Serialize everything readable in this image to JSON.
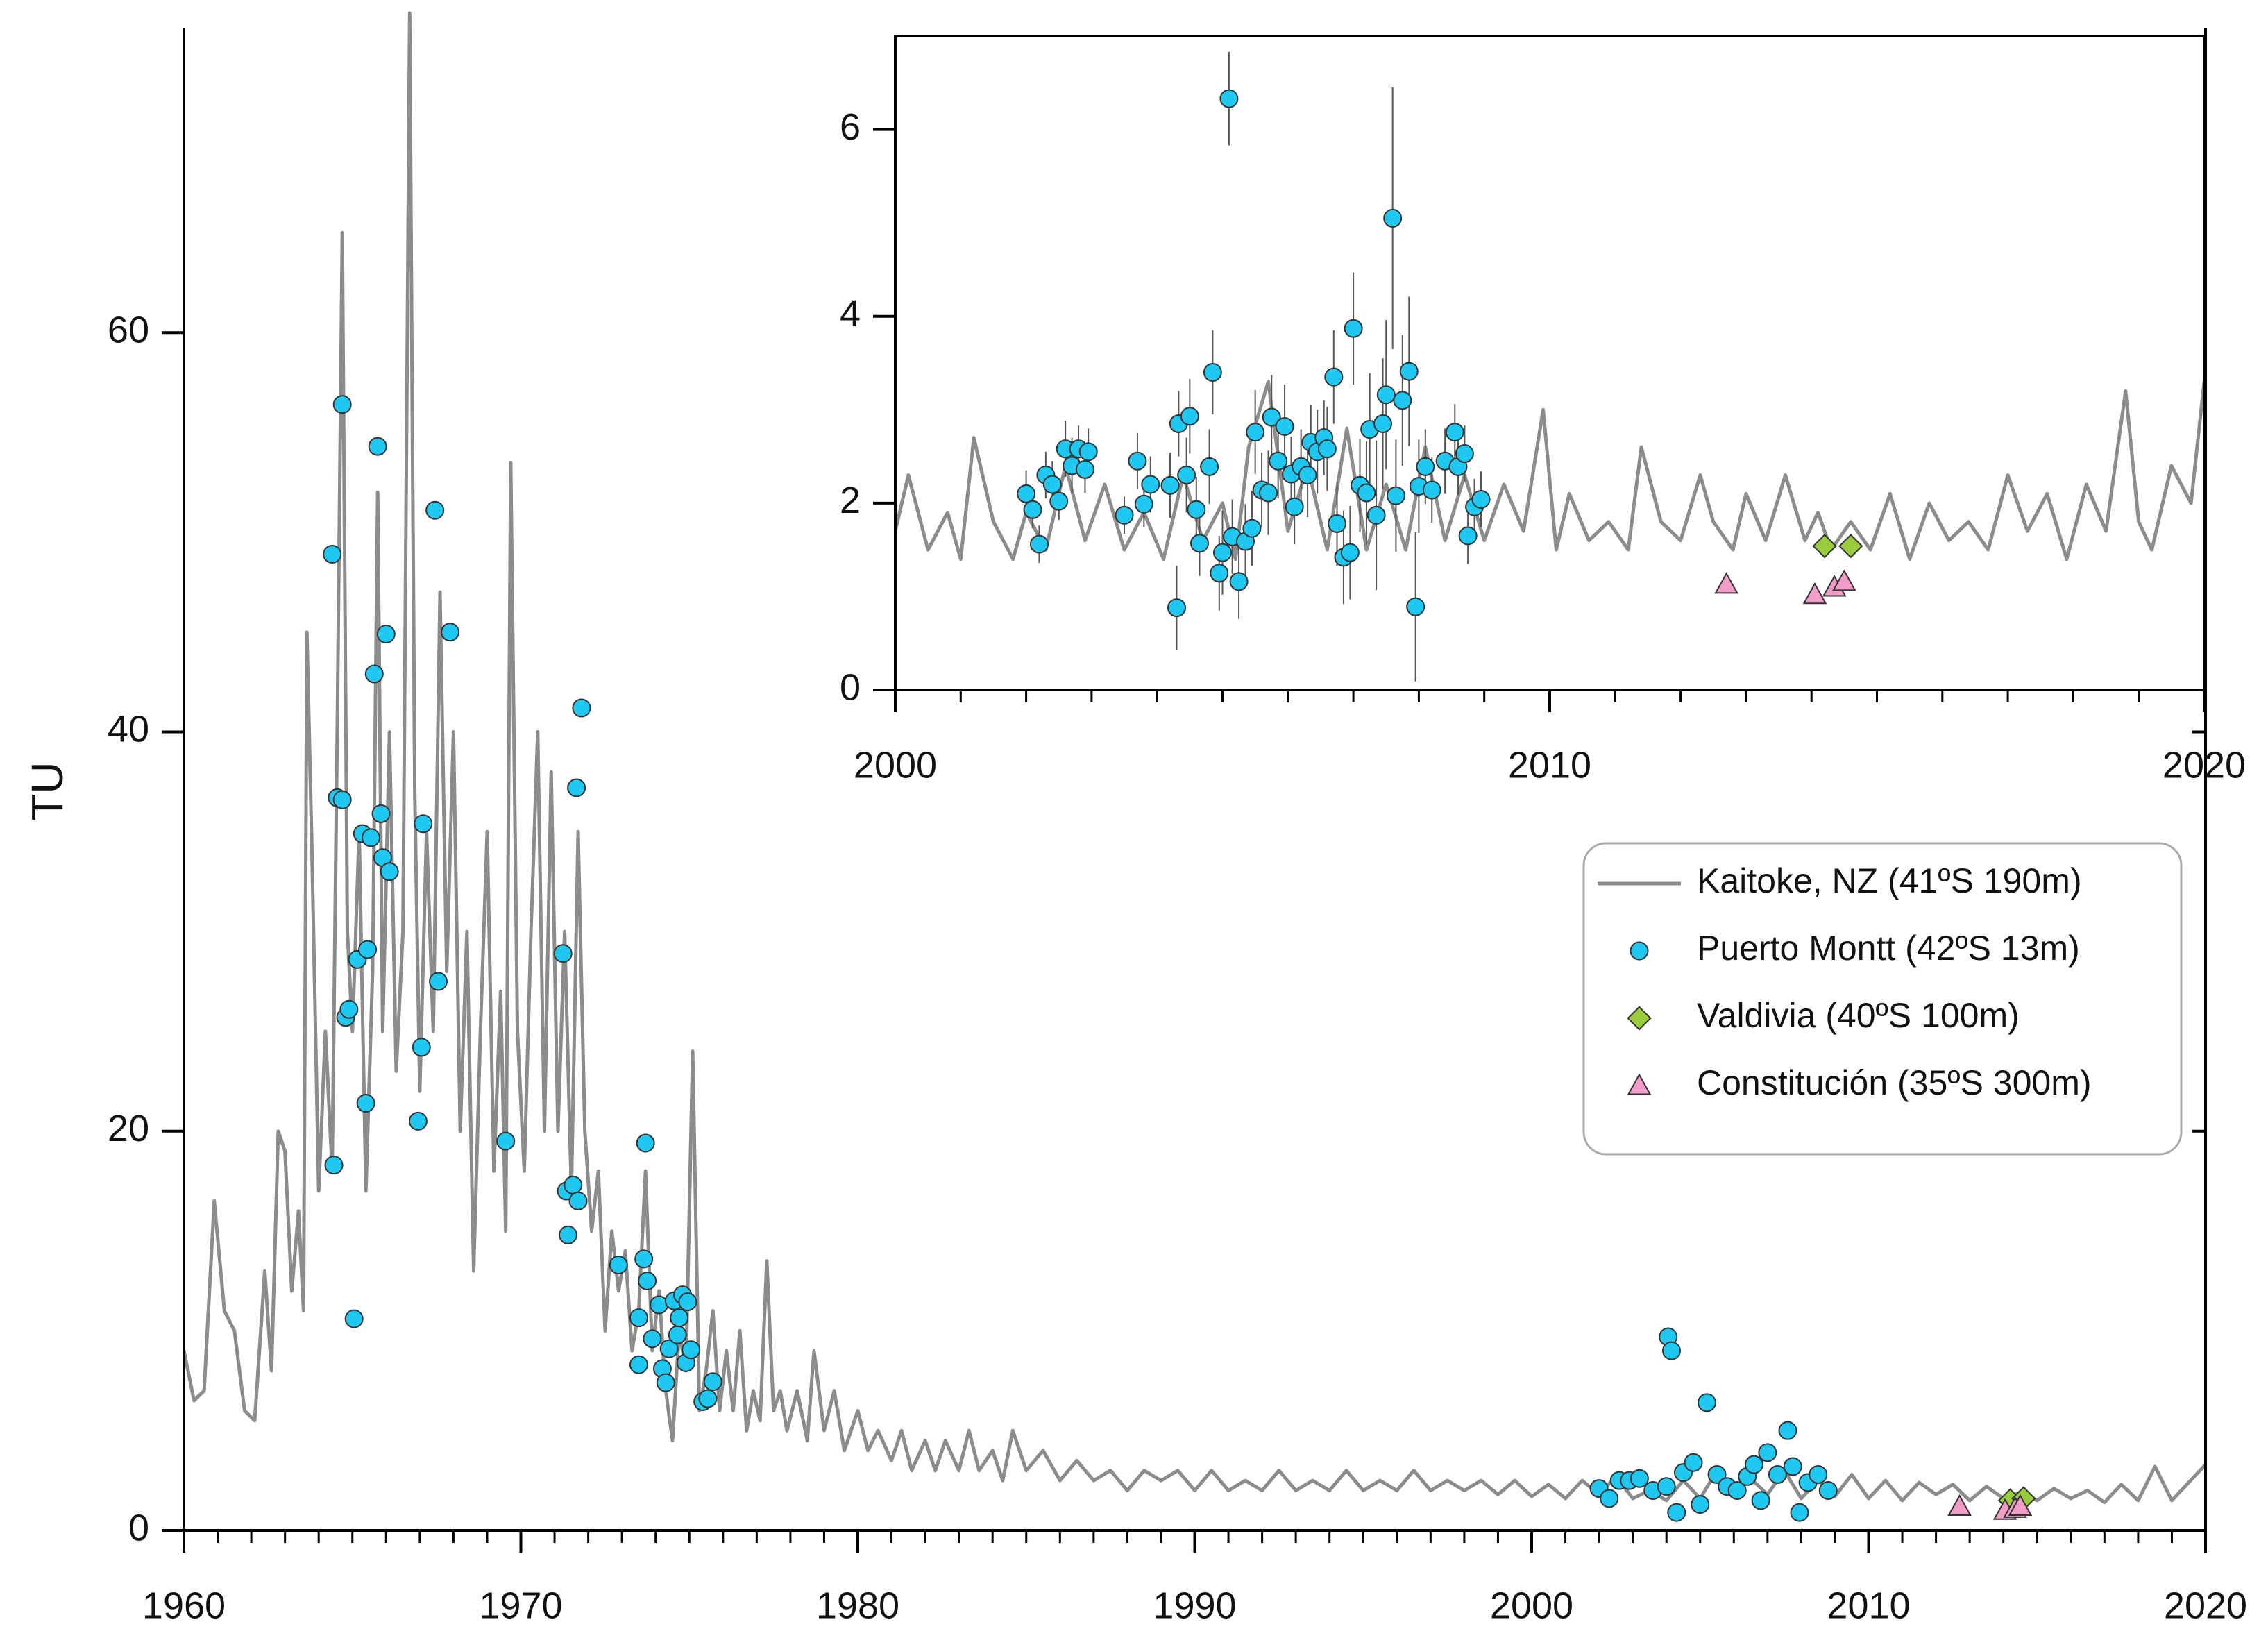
{
  "chart_data": [
    {
      "type": "line",
      "ylabel": "TU",
      "xlim": [
        1960,
        2020
      ],
      "xticks": [
        1960,
        1970,
        1980,
        1990,
        2000,
        2010,
        2020
      ],
      "xminor": 1,
      "ylim": [
        0,
        75.2
      ],
      "yticks": [
        0,
        20,
        40,
        60
      ],
      "legend": "right",
      "series": [
        {
          "name": "Kaitoke, NZ (41ºS 190m)",
          "color": "#8c8c8c",
          "marker": "line",
          "x": [
            1960.0,
            1960.3,
            1960.6,
            1960.9,
            1961.2,
            1961.5,
            1961.8,
            1962.1,
            1962.4,
            1962.6,
            1962.8,
            1963.0,
            1963.2,
            1963.4,
            1963.55,
            1963.65,
            1963.8,
            1964.0,
            1964.2,
            1964.4,
            1964.55,
            1964.7,
            1964.85,
            1965.0,
            1965.2,
            1965.4,
            1965.6,
            1965.75,
            1965.9,
            1966.1,
            1966.3,
            1966.5,
            1966.7,
            1966.85,
            1967.0,
            1967.2,
            1967.4,
            1967.6,
            1967.8,
            1968.0,
            1968.2,
            1968.4,
            1968.6,
            1968.8,
            1969.0,
            1969.2,
            1969.4,
            1969.55,
            1969.7,
            1969.9,
            1970.1,
            1970.3,
            1970.5,
            1970.7,
            1970.9,
            1971.1,
            1971.3,
            1971.5,
            1971.7,
            1971.9,
            1972.1,
            1972.3,
            1972.5,
            1972.7,
            1972.9,
            1973.1,
            1973.3,
            1973.5,
            1973.7,
            1973.9,
            1974.1,
            1974.3,
            1974.5,
            1974.7,
            1974.9,
            1975.1,
            1975.3,
            1975.5,
            1975.7,
            1975.9,
            1976.1,
            1976.3,
            1976.5,
            1976.7,
            1976.9,
            1977.1,
            1977.3,
            1977.5,
            1977.7,
            1977.9,
            1978.2,
            1978.5,
            1978.7,
            1979,
            1979.3,
            1979.6,
            1980,
            1980.3,
            1980.6,
            1981,
            1981.3,
            1981.6,
            1982,
            1982.3,
            1982.6,
            1983,
            1983.3,
            1983.6,
            1984,
            1984.3,
            1984.6,
            1985,
            1985.5,
            1986,
            1986.5,
            1987,
            1987.5,
            1988,
            1988.5,
            1989,
            1989.5,
            1990,
            1990.5,
            1991,
            1991.5,
            1992,
            1992.5,
            1993,
            1993.5,
            1994,
            1994.5,
            1995,
            1995.5,
            1996,
            1996.5,
            1997,
            1997.5,
            1998,
            1998.5,
            1999,
            1999.5,
            2000,
            2000.5,
            2001,
            2001.5,
            2002,
            2002.5,
            2003,
            2003.5,
            2004,
            2004.5,
            2005,
            2005.5,
            2006,
            2006.5,
            2007,
            2007.5,
            2008,
            2008.5,
            2009,
            2009.5,
            2010,
            2010.5,
            2011,
            2011.5,
            2012,
            2012.5,
            2013,
            2013.5,
            2014,
            2014.5,
            2015,
            2015.5,
            2016,
            2016.5,
            2017,
            2017.5,
            2018,
            2018.5,
            2019,
            2019.5,
            2020
          ],
          "values": [
            9,
            6.5,
            7,
            16.5,
            11,
            10,
            6,
            5.5,
            13,
            8,
            20,
            19,
            12,
            16,
            11,
            45,
            34,
            17,
            25,
            18,
            40,
            65,
            30,
            25,
            35,
            17,
            28,
            52,
            25,
            40,
            23,
            30,
            76,
            37,
            22,
            35,
            25,
            47,
            28,
            40,
            20,
            30,
            13,
            25,
            35,
            18,
            27,
            15,
            53.5,
            25,
            18,
            30,
            40,
            20,
            38,
            20,
            30,
            17,
            35,
            20,
            15,
            18,
            10,
            15,
            12,
            14,
            9,
            11,
            18,
            9,
            12,
            7,
            4.5,
            10,
            8,
            24,
            6,
            8,
            11,
            6,
            9,
            6,
            10,
            5,
            7,
            5.5,
            13.5,
            6,
            7,
            5,
            7,
            4.5,
            9,
            5,
            7,
            4,
            6,
            4,
            5,
            3.5,
            5,
            3,
            4.5,
            3,
            4.5,
            3,
            5,
            3,
            4,
            2.5,
            5,
            3,
            4,
            2.5,
            3.5,
            2.5,
            3,
            2,
            3,
            2.5,
            3,
            2,
            3,
            2,
            2.5,
            2,
            3,
            2,
            2.5,
            2,
            3,
            2,
            2.5,
            2,
            3,
            2,
            2.5,
            2,
            2.5,
            1.8,
            2.5,
            1.7,
            2.3,
            1.6,
            2.5,
            1.8,
            2.7,
            1.6,
            2,
            1.5,
            2.5,
            1.6,
            3,
            1.7,
            2.6,
            1.8,
            3,
            1.6,
            2.5,
            1.7,
            2.8,
            1.6,
            2.5,
            1.5,
            2.4,
            1.8,
            2.3,
            1.5,
            2.2,
            1.6,
            1.9,
            1.5,
            2.1,
            1.6,
            2,
            1.4,
            2.3,
            1.5,
            3.2,
            1.5,
            2.4,
            3.3
          ]
        },
        {
          "name": "Puerto Montt (42ºS 13m)",
          "color": "#1ec8f0",
          "marker": "circle",
          "x": [
            1964.4,
            1964.45,
            1964.55,
            1964.7,
            1964.7,
            1964.8,
            1964.9,
            1965.05,
            1965.15,
            1965.3,
            1965.4,
            1965.45,
            1965.55,
            1965.65,
            1965.75,
            1965.85,
            1965.9,
            1966.0,
            1966.1,
            1966.95,
            1967.05,
            1967.1,
            1967.45,
            1967.55,
            1967.9,
            1969.55,
            1971.25,
            1971.35,
            1971.4,
            1971.55,
            1971.65,
            1971.7,
            1971.8,
            1972.9,
            1973.5,
            1973.5,
            1973.65,
            1973.7,
            1973.75,
            1973.9,
            1974.1,
            1974.2,
            1974.3,
            1974.4,
            1974.55,
            1974.65,
            1974.7,
            1974.8,
            1974.9,
            1974.95,
            1975.05,
            1975.4,
            1975.55,
            1975.7,
            2002.0,
            2002.3,
            2002.6,
            2002.9,
            2003.2,
            2003.6,
            2004.0,
            2004.05,
            2004.15,
            2004.3,
            2004.5,
            2004.8,
            2005.0,
            2005.2,
            2005.5,
            2005.8,
            2006.1,
            2006.4,
            2006.6,
            2006.8,
            2007.0,
            2007.3,
            2007.6,
            2007.75,
            2007.95,
            2008.2,
            2008.5,
            2008.8
          ],
          "values": [
            48.9,
            18.3,
            36.7,
            36.6,
            56.4,
            25.7,
            26.1,
            10.6,
            28.6,
            34.9,
            21.4,
            29.1,
            34.7,
            42.9,
            54.3,
            35.9,
            33.7,
            44.9,
            33.0,
            20.5,
            24.2,
            35.4,
            51.1,
            27.5,
            45.0,
            19.5,
            28.9,
            17.0,
            14.8,
            17.3,
            37.2,
            16.5,
            41.2,
            13.3,
            10.65,
            8.3,
            13.6,
            19.4,
            12.5,
            9.6,
            11.3,
            8.1,
            7.4,
            9.1,
            11.5,
            9.8,
            10.65,
            11.8,
            8.4,
            11.45,
            9.05,
            6.45,
            6.6,
            7.45,
            2.1,
            1.6,
            2.5,
            2.5,
            2.6,
            2.0,
            2.2,
            9.7,
            9.0,
            0.9,
            2.9,
            3.4,
            1.3,
            6.4,
            2.8,
            2.2,
            2.0,
            2.7,
            3.3,
            1.5,
            3.9,
            2.8,
            5.0,
            3.2,
            0.9,
            2.4,
            2.8,
            2.0
          ]
        },
        {
          "name": "Valdivia (40ºS 100m)",
          "color": "#9acd3c",
          "marker": "diamond",
          "x": [
            2014.2,
            2014.6
          ],
          "values": [
            1.5,
            1.6
          ]
        },
        {
          "name": "Constitución (35ºS 300m)",
          "color": "#f29cc8",
          "marker": "triangle",
          "x": [
            2012.7,
            2014.05,
            2014.35,
            2014.5
          ],
          "values": [
            1.2,
            1.0,
            1.1,
            1.2
          ]
        }
      ]
    },
    {
      "type": "line",
      "xlim": [
        2000,
        2020
      ],
      "xticks": [
        2000,
        2010,
        2020
      ],
      "xminor": 1,
      "ylim": [
        0,
        7
      ],
      "yticks": [
        0,
        2,
        4,
        6
      ],
      "series": [
        {
          "color": "#8c8c8c",
          "marker": "line",
          "x": [
            2000,
            2000.2,
            2000.5,
            2000.8,
            2001,
            2001.2,
            2001.5,
            2001.8,
            2002,
            2002.3,
            2002.6,
            2002.9,
            2003.2,
            2003.5,
            2003.8,
            2004.1,
            2004.4,
            2004.7,
            2005,
            2005.2,
            2005.4,
            2005.7,
            2006,
            2006.3,
            2006.6,
            2006.9,
            2007.2,
            2007.5,
            2007.8,
            2008.1,
            2008.4,
            2008.7,
            2009,
            2009.3,
            2009.6,
            2009.9,
            2010.1,
            2010.3,
            2010.6,
            2010.9,
            2011.2,
            2011.4,
            2011.7,
            2012,
            2012.3,
            2012.5,
            2012.8,
            2013,
            2013.3,
            2013.6,
            2013.9,
            2014.1,
            2014.3,
            2014.6,
            2014.9,
            2015.2,
            2015.5,
            2015.8,
            2016.1,
            2016.4,
            2016.7,
            2017,
            2017.3,
            2017.6,
            2017.9,
            2018.2,
            2018.5,
            2018.8,
            2019,
            2019.2,
            2019.5,
            2019.8,
            2020
          ],
          "values": [
            1.7,
            2.3,
            1.5,
            1.9,
            1.4,
            2.7,
            1.8,
            1.4,
            1.9,
            1.5,
            2.4,
            1.6,
            2.2,
            1.5,
            1.9,
            1.4,
            2.3,
            1.6,
            2.0,
            1.4,
            2.6,
            3.3,
            1.7,
            2.4,
            1.5,
            2.8,
            1.5,
            2.2,
            1.5,
            2.6,
            1.6,
            2.3,
            1.6,
            2.2,
            1.7,
            3.0,
            1.5,
            2.1,
            1.6,
            1.8,
            1.5,
            2.6,
            1.8,
            1.6,
            2.3,
            1.8,
            1.5,
            2.1,
            1.6,
            2.3,
            1.6,
            1.9,
            1.5,
            1.8,
            1.5,
            2.1,
            1.4,
            2.0,
            1.6,
            1.8,
            1.5,
            2.3,
            1.7,
            2.1,
            1.4,
            2.2,
            1.7,
            3.2,
            1.8,
            1.5,
            2.4,
            2.0,
            3.3
          ]
        },
        {
          "color": "#1ec8f0",
          "marker": "circle",
          "x": [
            2002.0,
            2002.1,
            2002.2,
            2002.3,
            2002.4,
            2002.5,
            2002.6,
            2002.7,
            2002.8,
            2002.9,
            2002.95,
            2003.5,
            2003.7,
            2003.8,
            2003.9,
            2004.2,
            2004.3,
            2004.33,
            2004.45,
            2004.5,
            2004.6,
            2004.65,
            2004.8,
            2004.85,
            2004.95,
            2005.0,
            2005.1,
            2005.15,
            2005.25,
            2005.35,
            2005.45,
            2005.5,
            2005.6,
            2005.7,
            2005.75,
            2005.85,
            2005.95,
            2006.05,
            2006.1,
            2006.2,
            2006.3,
            2006.35,
            2006.45,
            2006.55,
            2006.6,
            2006.7,
            2006.75,
            2006.85,
            2006.95,
            2007.0,
            2007.1,
            2007.2,
            2007.25,
            2007.35,
            2007.45,
            2007.5,
            2007.6,
            2007.65,
            2007.75,
            2007.85,
            2007.95,
            2008.0,
            2008.1,
            2008.2,
            2008.4,
            2008.55,
            2008.6,
            2008.7,
            2008.75,
            2008.85,
            2008.95
          ],
          "values": [
            2.1,
            1.93,
            1.56,
            2.3,
            2.2,
            2.02,
            2.58,
            2.4,
            2.58,
            2.36,
            2.55,
            1.87,
            2.45,
            1.99,
            2.2,
            2.19,
            0.88,
            2.85,
            2.3,
            2.93,
            1.93,
            1.57,
            2.39,
            3.4,
            1.25,
            1.47,
            6.33,
            1.64,
            1.16,
            1.59,
            1.73,
            2.76,
            2.14,
            2.11,
            2.92,
            2.45,
            2.82,
            2.31,
            1.96,
            2.39,
            2.3,
            2.65,
            2.55,
            2.7,
            2.58,
            3.35,
            1.78,
            1.42,
            1.47,
            3.87,
            2.19,
            2.11,
            2.79,
            1.87,
            2.85,
            3.16,
            5.05,
            2.08,
            3.1,
            3.41,
            0.89,
            2.18,
            2.39,
            2.14,
            2.45,
            2.76,
            2.39,
            2.53,
            1.65,
            1.96,
            2.04
          ],
          "errors": [
            0.25,
            0.2,
            0.2,
            0.25,
            0.25,
            0.2,
            0.3,
            0.3,
            0.25,
            0.25,
            0.25,
            0.2,
            0.3,
            0.25,
            0.3,
            0.35,
            0.45,
            0.35,
            0.4,
            0.4,
            0.35,
            0.35,
            0.4,
            0.45,
            0.4,
            0.45,
            0.5,
            0.4,
            0.4,
            0.4,
            0.4,
            0.45,
            0.4,
            0.45,
            0.45,
            0.4,
            0.45,
            0.4,
            0.4,
            0.4,
            0.45,
            0.4,
            0.45,
            0.4,
            0.45,
            0.5,
            0.45,
            0.5,
            0.5,
            0.6,
            0.5,
            0.55,
            0.6,
            0.8,
            0.7,
            0.8,
            1.4,
            0.6,
            0.7,
            0.8,
            0.8,
            0.5,
            0.4,
            0.35,
            0.35,
            0.3,
            0.3,
            0.3,
            0.3,
            0.3,
            0.3
          ]
        },
        {
          "color": "#9acd3c",
          "marker": "diamond",
          "x": [
            2014.2,
            2014.6
          ],
          "values": [
            1.54,
            1.54
          ]
        },
        {
          "color": "#f29cc8",
          "marker": "triangle",
          "x": [
            2012.7,
            2014.05,
            2014.35,
            2014.5
          ],
          "values": [
            1.13,
            1.02,
            1.1,
            1.16
          ]
        }
      ]
    }
  ]
}
